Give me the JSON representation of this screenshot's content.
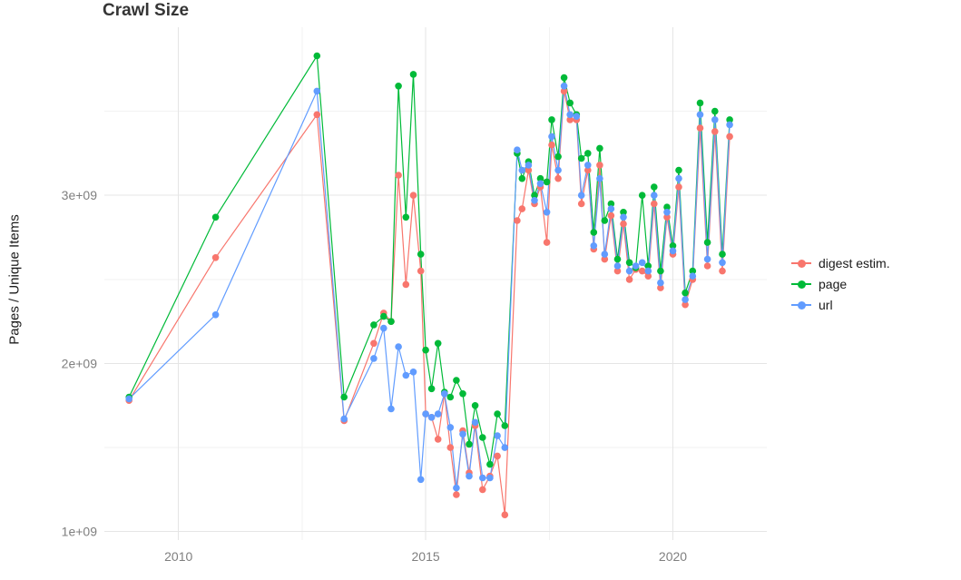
{
  "chart": {
    "title": "Crawl Size",
    "ylabel": "Pages / Unique Items"
  },
  "legend": {
    "items": [
      {
        "label": "digest estim.",
        "color": "#F8766D"
      },
      {
        "label": "page",
        "color": "#00BA38"
      },
      {
        "label": "url",
        "color": "#619CFF"
      }
    ]
  },
  "chart_data": {
    "type": "line",
    "title": "Crawl Size",
    "xlabel": "",
    "ylabel": "Pages / Unique Items",
    "xlim": [
      2008.5,
      2021.9
    ],
    "ylim": [
      950000000.0,
      4000000000.0
    ],
    "grid": true,
    "legend_position": "right",
    "x_ticks": [
      {
        "value": 2010,
        "label": "2010"
      },
      {
        "value": 2015,
        "label": "2015"
      },
      {
        "value": 2020,
        "label": "2020"
      }
    ],
    "x_minor_ticks": [
      2012.5,
      2017.5
    ],
    "y_ticks": [
      {
        "value": 1000000000.0,
        "label": "1e+09"
      },
      {
        "value": 2000000000.0,
        "label": "2e+09"
      },
      {
        "value": 3000000000.0,
        "label": "3e+09"
      }
    ],
    "y_minor_ticks": [
      1500000000.0,
      2500000000.0,
      3500000000.0
    ],
    "x": [
      2009.0,
      2010.75,
      2012.8,
      2013.35,
      2013.95,
      2014.15,
      2014.3,
      2014.45,
      2014.6,
      2014.75,
      2014.9,
      2015.0,
      2015.12,
      2015.25,
      2015.38,
      2015.5,
      2015.62,
      2015.75,
      2015.88,
      2016.0,
      2016.15,
      2016.3,
      2016.45,
      2016.6,
      2016.85,
      2016.95,
      2017.08,
      2017.2,
      2017.32,
      2017.45,
      2017.55,
      2017.68,
      2017.8,
      2017.92,
      2018.05,
      2018.15,
      2018.28,
      2018.4,
      2018.52,
      2018.62,
      2018.75,
      2018.88,
      2019.0,
      2019.12,
      2019.25,
      2019.38,
      2019.5,
      2019.62,
      2019.75,
      2019.88,
      2020.0,
      2020.12,
      2020.25,
      2020.4,
      2020.55,
      2020.7,
      2020.85,
      2021.0,
      2021.15
    ],
    "series": [
      {
        "name": "digest estim.",
        "color": "#F8766D",
        "values": [
          1780000000.0,
          2630000000.0,
          3480000000.0,
          1660000000.0,
          2120000000.0,
          2300000000.0,
          2250000000.0,
          3120000000.0,
          2470000000.0,
          3000000000.0,
          2550000000.0,
          1700000000.0,
          1680000000.0,
          1550000000.0,
          1820000000.0,
          1500000000.0,
          1220000000.0,
          1600000000.0,
          1350000000.0,
          1630000000.0,
          1250000000.0,
          1330000000.0,
          1450000000.0,
          1100000000.0,
          2850000000.0,
          2920000000.0,
          3150000000.0,
          2950000000.0,
          3050000000.0,
          2720000000.0,
          3300000000.0,
          3100000000.0,
          3620000000.0,
          3450000000.0,
          3450000000.0,
          2950000000.0,
          3150000000.0,
          2680000000.0,
          3180000000.0,
          2620000000.0,
          2880000000.0,
          2550000000.0,
          2830000000.0,
          2500000000.0,
          2560000000.0,
          2550000000.0,
          2520000000.0,
          2950000000.0,
          2450000000.0,
          2870000000.0,
          2650000000.0,
          3050000000.0,
          2350000000.0,
          2500000000.0,
          3400000000.0,
          2580000000.0,
          3380000000.0,
          2550000000.0,
          3350000000.0
        ]
      },
      {
        "name": "page",
        "color": "#00BA38",
        "values": [
          1800000000.0,
          2870000000.0,
          3830000000.0,
          1800000000.0,
          2230000000.0,
          2280000000.0,
          2250000000.0,
          3650000000.0,
          2870000000.0,
          3720000000.0,
          2650000000.0,
          2080000000.0,
          1850000000.0,
          2120000000.0,
          1830000000.0,
          1800000000.0,
          1900000000.0,
          1820000000.0,
          1520000000.0,
          1750000000.0,
          1560000000.0,
          1400000000.0,
          1700000000.0,
          1630000000.0,
          3250000000.0,
          3100000000.0,
          3200000000.0,
          3000000000.0,
          3100000000.0,
          3080000000.0,
          3450000000.0,
          3230000000.0,
          3700000000.0,
          3550000000.0,
          3480000000.0,
          3220000000.0,
          3250000000.0,
          2780000000.0,
          3280000000.0,
          2850000000.0,
          2950000000.0,
          2620000000.0,
          2900000000.0,
          2600000000.0,
          2570000000.0,
          3000000000.0,
          2580000000.0,
          3050000000.0,
          2550000000.0,
          2930000000.0,
          2700000000.0,
          3150000000.0,
          2420000000.0,
          2550000000.0,
          3550000000.0,
          2720000000.0,
          3500000000.0,
          2650000000.0,
          3450000000.0
        ]
      },
      {
        "name": "url",
        "color": "#619CFF",
        "values": [
          1790000000.0,
          2290000000.0,
          3620000000.0,
          1670000000.0,
          2030000000.0,
          2210000000.0,
          1730000000.0,
          2100000000.0,
          1930000000.0,
          1950000000.0,
          1310000000.0,
          1700000000.0,
          1680000000.0,
          1700000000.0,
          1820000000.0,
          1620000000.0,
          1260000000.0,
          1580000000.0,
          1330000000.0,
          1650000000.0,
          1320000000.0,
          1320000000.0,
          1570000000.0,
          1500000000.0,
          3270000000.0,
          3150000000.0,
          3180000000.0,
          2970000000.0,
          3070000000.0,
          2900000000.0,
          3350000000.0,
          3150000000.0,
          3650000000.0,
          3480000000.0,
          3470000000.0,
          3000000000.0,
          3180000000.0,
          2700000000.0,
          3100000000.0,
          2650000000.0,
          2920000000.0,
          2580000000.0,
          2870000000.0,
          2550000000.0,
          2580000000.0,
          2600000000.0,
          2550000000.0,
          3000000000.0,
          2480000000.0,
          2900000000.0,
          2670000000.0,
          3100000000.0,
          2380000000.0,
          2520000000.0,
          3480000000.0,
          2620000000.0,
          3450000000.0,
          2600000000.0,
          3420000000.0
        ]
      }
    ]
  }
}
